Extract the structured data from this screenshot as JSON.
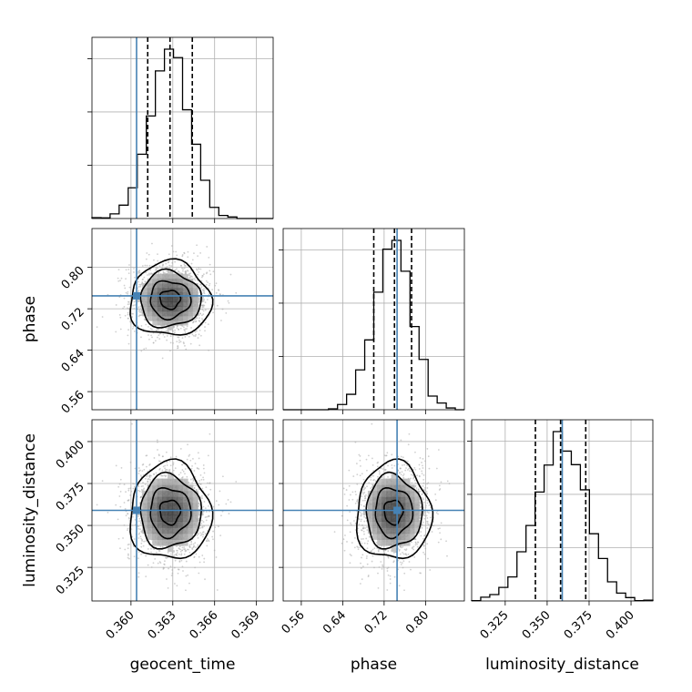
{
  "chart_data": {
    "type": "corner",
    "parameters": [
      {
        "name": "geocent_time",
        "label": "geocent_time",
        "range": [
          0.3572,
          0.3702
        ],
        "ticks": [
          0.36,
          0.363,
          0.366,
          0.369
        ],
        "tick_labels": [
          "0.360",
          "0.363",
          "0.366",
          "0.369"
        ],
        "truth": 0.3604,
        "quantiles": [
          0.3612,
          0.3628,
          0.3644
        ],
        "mean": 0.3628,
        "sd": 0.00145
      },
      {
        "name": "phase",
        "label": "phase",
        "range": [
          0.525,
          0.875
        ],
        "ticks": [
          0.56,
          0.64,
          0.72,
          0.8
        ],
        "tick_labels": [
          "0.56",
          "0.64",
          "0.72",
          "0.80"
        ],
        "truth": 0.745,
        "quantiles": [
          0.7,
          0.74,
          0.773
        ],
        "mean": 0.738,
        "sd": 0.036
      },
      {
        "name": "luminosity_distance",
        "label": "luminosity_distance",
        "range": [
          0.305,
          0.413
        ],
        "ticks": [
          0.325,
          0.35,
          0.375,
          0.4
        ],
        "tick_labels": [
          "0.325",
          "0.350",
          "0.375",
          "0.400"
        ],
        "truth": 0.359,
        "quantiles": [
          0.343,
          0.358,
          0.373
        ],
        "mean": 0.358,
        "sd": 0.0145
      }
    ],
    "histogram_bins": 20,
    "contour_levels": [
      0.5,
      1.0,
      1.5,
      2.0
    ],
    "grid": true,
    "colors": {
      "truth": "#4682b4",
      "hist": "#000000",
      "quantile": "#000000",
      "grid": "#b0b0b0",
      "points": "#aaaaaa"
    }
  }
}
